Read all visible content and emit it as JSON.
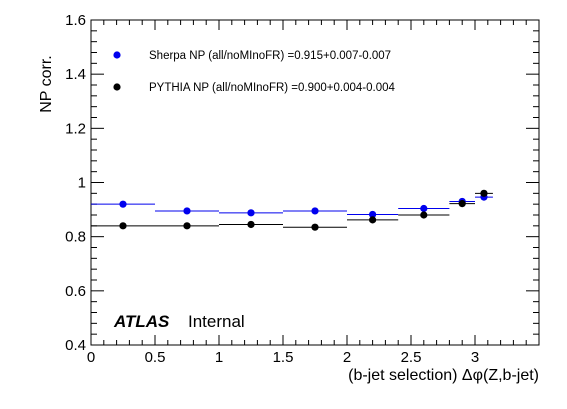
{
  "chart_data": {
    "type": "scatter",
    "xlabel": "(b-jet selection) Δφ(Z,b-jet)",
    "ylabel": "NP corr.",
    "xlim": [
      0,
      3.5
    ],
    "ylim": [
      0.4,
      1.6
    ],
    "x_ticks": [
      "0",
      "0.5",
      "1",
      "1.5",
      "2",
      "2.5",
      "3"
    ],
    "y_ticks": [
      "0.4",
      "0.6",
      "0.8",
      "1",
      "1.2",
      "1.4",
      "1.6"
    ],
    "grid": false,
    "legend_position": "top-left",
    "series": [
      {
        "name": "Sherpa NP (all/noMInoFR) =0.915+0.007-0.007",
        "color": "#0000ee",
        "points": [
          {
            "x": 0.25,
            "xlo": 0.0,
            "xhi": 0.5,
            "y": 0.92
          },
          {
            "x": 0.75,
            "xlo": 0.5,
            "xhi": 1.0,
            "y": 0.895
          },
          {
            "x": 1.25,
            "xlo": 1.0,
            "xhi": 1.5,
            "y": 0.888
          },
          {
            "x": 1.75,
            "xlo": 1.5,
            "xhi": 2.0,
            "y": 0.895
          },
          {
            "x": 2.2,
            "xlo": 2.0,
            "xhi": 2.4,
            "y": 0.882
          },
          {
            "x": 2.6,
            "xlo": 2.4,
            "xhi": 2.8,
            "y": 0.904
          },
          {
            "x": 2.9,
            "xlo": 2.8,
            "xhi": 3.0,
            "y": 0.93
          },
          {
            "x": 3.07,
            "xlo": 3.0,
            "xhi": 3.14,
            "y": 0.946
          }
        ]
      },
      {
        "name": "PYTHIA NP (all/noMInoFR) =0.900+0.004-0.004",
        "color": "#000000",
        "points": [
          {
            "x": 0.25,
            "xlo": 0.0,
            "xhi": 0.5,
            "y": 0.84
          },
          {
            "x": 0.75,
            "xlo": 0.5,
            "xhi": 1.0,
            "y": 0.84
          },
          {
            "x": 1.25,
            "xlo": 1.0,
            "xhi": 1.5,
            "y": 0.845
          },
          {
            "x": 1.75,
            "xlo": 1.5,
            "xhi": 2.0,
            "y": 0.835
          },
          {
            "x": 2.2,
            "xlo": 2.0,
            "xhi": 2.4,
            "y": 0.862
          },
          {
            "x": 2.6,
            "xlo": 2.4,
            "xhi": 2.8,
            "y": 0.88
          },
          {
            "x": 2.9,
            "xlo": 2.8,
            "xhi": 3.0,
            "y": 0.922
          },
          {
            "x": 3.07,
            "xlo": 3.0,
            "xhi": 3.14,
            "y": 0.96
          }
        ]
      }
    ],
    "annotations": {
      "experiment": "ATLAS",
      "status": "Internal"
    }
  }
}
